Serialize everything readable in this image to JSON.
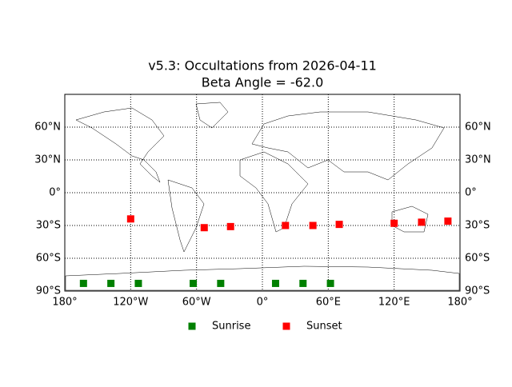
{
  "chart_data": {
    "type": "scatter",
    "title": "v5.3: Occultations from 2026-04-11",
    "subtitle": "Beta Angle = -62.0",
    "xlim": [
      -180,
      180
    ],
    "ylim": [
      -90,
      90
    ],
    "xticks": [
      {
        "value": -180,
        "label": "180°"
      },
      {
        "value": -120,
        "label": "120°W"
      },
      {
        "value": -60,
        "label": "60°W"
      },
      {
        "value": 0,
        "label": "0°"
      },
      {
        "value": 60,
        "label": "60°E"
      },
      {
        "value": 120,
        "label": "120°E"
      },
      {
        "value": 180,
        "label": "180°"
      }
    ],
    "yticks": [
      {
        "value": -90,
        "label": "90°S"
      },
      {
        "value": -60,
        "label": "60°S"
      },
      {
        "value": -30,
        "label": "30°S"
      },
      {
        "value": 0,
        "label": "0°"
      },
      {
        "value": 30,
        "label": "30°N"
      },
      {
        "value": 60,
        "label": "60°N"
      }
    ],
    "grid": true,
    "series": [
      {
        "name": "Sunrise",
        "color": "#008000",
        "x": [
          -163,
          -138,
          -113,
          -63,
          -38,
          12,
          37,
          62
        ],
        "values": [
          -83,
          -83,
          -83,
          -83,
          -83,
          -83,
          -83,
          -83
        ]
      },
      {
        "name": "Sunset",
        "color": "#ff0000",
        "x": [
          -120,
          -53,
          -29,
          21,
          46,
          70,
          120,
          145,
          169
        ],
        "values": [
          -24,
          -32,
          -31,
          -30,
          -30,
          -29,
          -28,
          -27,
          -26
        ]
      }
    ]
  }
}
